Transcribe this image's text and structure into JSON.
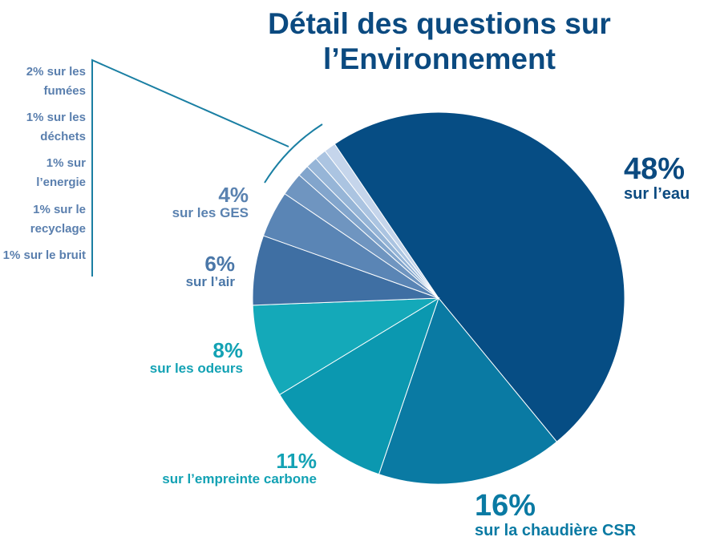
{
  "chart_data": {
    "type": "pie",
    "title": "Détail des questions sur l’Environnement",
    "categories": [
      "sur l’eau",
      "sur la chaudière CSR",
      "sur l’empreinte carbone",
      "sur les odeurs",
      "sur  l’air",
      "sur les GES",
      "sur les fumées",
      "sur les déchets",
      "sur l’energie",
      "sur le recyclage",
      "sur le bruit"
    ],
    "values": [
      48,
      16,
      11,
      8,
      6,
      4,
      2,
      1,
      1,
      1,
      1
    ],
    "value_labels": [
      "48%",
      "16%",
      "11%",
      "8%",
      "6%",
      "4%",
      "2%",
      "1%",
      "1%",
      "1%",
      "1%"
    ],
    "colors": [
      "#064d84",
      "#0a7aa3",
      "#0b98b0",
      "#14a9b9",
      "#3f6fa3",
      "#5a85b5",
      "#6f95c0",
      "#82a5cc",
      "#96b5d7",
      "#abc4e1",
      "#c5d5eb"
    ]
  }
}
